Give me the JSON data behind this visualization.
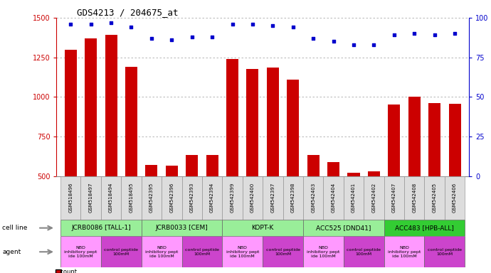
{
  "title": "GDS4213 / 204675_at",
  "samples": [
    "GSM518496",
    "GSM518497",
    "GSM518494",
    "GSM518495",
    "GSM542395",
    "GSM542396",
    "GSM542393",
    "GSM542394",
    "GSM542399",
    "GSM542400",
    "GSM542397",
    "GSM542398",
    "GSM542403",
    "GSM542404",
    "GSM542401",
    "GSM542402",
    "GSM542407",
    "GSM542408",
    "GSM542405",
    "GSM542406"
  ],
  "counts": [
    1300,
    1370,
    1390,
    1190,
    570,
    565,
    635,
    635,
    1240,
    1175,
    1185,
    1110,
    635,
    590,
    520,
    530,
    950,
    1000,
    960,
    955
  ],
  "percentile_ranks": [
    96,
    96,
    97,
    94,
    87,
    86,
    88,
    88,
    96,
    96,
    95,
    94,
    87,
    85,
    83,
    83,
    89,
    90,
    89,
    90
  ],
  "ylim_left": [
    500,
    1500
  ],
  "ylim_right": [
    0,
    100
  ],
  "yticks_left": [
    500,
    750,
    1000,
    1250,
    1500
  ],
  "yticks_right": [
    0,
    25,
    50,
    75,
    100
  ],
  "bar_color": "#cc0000",
  "dot_color": "#0000cc",
  "cell_lines": [
    {
      "label": "JCRB0086 [TALL-1]",
      "start": 0,
      "end": 4,
      "color": "#99ee99"
    },
    {
      "label": "JCRB0033 [CEM]",
      "start": 4,
      "end": 8,
      "color": "#99ee99"
    },
    {
      "label": "KOPT-K",
      "start": 8,
      "end": 12,
      "color": "#99ee99"
    },
    {
      "label": "ACC525 [DND41]",
      "start": 12,
      "end": 16,
      "color": "#99ee99"
    },
    {
      "label": "ACC483 [HPB-ALL]",
      "start": 16,
      "end": 20,
      "color": "#33cc33"
    }
  ],
  "agents": [
    {
      "label": "NBD\ninhibitory pept\nide 100mM",
      "start": 0,
      "end": 2,
      "color": "#ff99ff"
    },
    {
      "label": "control peptide\n100mM",
      "start": 2,
      "end": 4,
      "color": "#cc44cc"
    },
    {
      "label": "NBD\ninhibitory pept\nide 100mM",
      "start": 4,
      "end": 6,
      "color": "#ff99ff"
    },
    {
      "label": "control peptide\n100mM",
      "start": 6,
      "end": 8,
      "color": "#cc44cc"
    },
    {
      "label": "NBD\ninhibitory pept\nide 100mM",
      "start": 8,
      "end": 10,
      "color": "#ff99ff"
    },
    {
      "label": "control peptide\n100mM",
      "start": 10,
      "end": 12,
      "color": "#cc44cc"
    },
    {
      "label": "NBD\ninhibitory pept\nide 100mM",
      "start": 12,
      "end": 14,
      "color": "#ff99ff"
    },
    {
      "label": "control peptide\n100mM",
      "start": 14,
      "end": 16,
      "color": "#cc44cc"
    },
    {
      "label": "NBD\ninhibitory pept\nide 100mM",
      "start": 16,
      "end": 18,
      "color": "#ff99ff"
    },
    {
      "label": "control peptide\n100mM",
      "start": 18,
      "end": 20,
      "color": "#cc44cc"
    }
  ],
  "legend_count_color": "#cc0000",
  "legend_dot_color": "#0000cc",
  "bg_color": "#ffffff",
  "grid_color": "#aaaaaa",
  "sample_box_color": "#dddddd",
  "left_label_color": "#888888"
}
